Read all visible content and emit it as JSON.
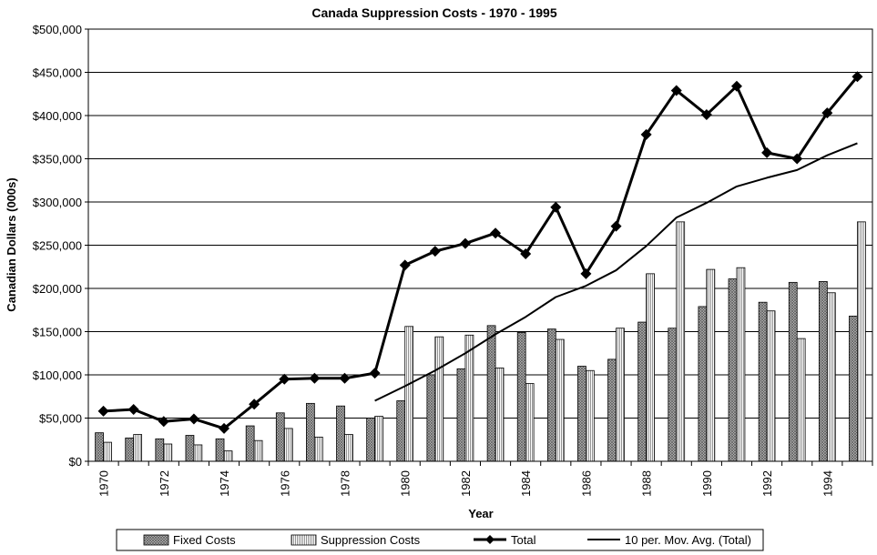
{
  "chart_data": {
    "type": "bar",
    "title": "Canada Suppression Costs - 1970 - 1995",
    "xlabel": "Year",
    "ylabel": "Canadian Dollars (000s)",
    "ylim": [
      0,
      500000
    ],
    "y_ticks": [
      "$0",
      "$50,000",
      "$100,000",
      "$150,000",
      "$200,000",
      "$250,000",
      "$300,000",
      "$350,000",
      "$400,000",
      "$450,000",
      "$500,000"
    ],
    "x_tick_labels": [
      "1970",
      "1972",
      "1974",
      "1976",
      "1978",
      "1980",
      "1982",
      "1984",
      "1986",
      "1988",
      "1990",
      "1992",
      "1994"
    ],
    "categories": [
      "1970",
      "1971",
      "1972",
      "1973",
      "1974",
      "1975",
      "1976",
      "1977",
      "1978",
      "1979",
      "1980",
      "1981",
      "1982",
      "1983",
      "1984",
      "1985",
      "1986",
      "1987",
      "1988",
      "1989",
      "1990",
      "1991",
      "1992",
      "1993",
      "1994",
      "1995"
    ],
    "grid": true,
    "legend_position": "bottom",
    "series": [
      {
        "name": "Fixed Costs",
        "kind": "bar",
        "pattern": "crosshatch",
        "values": [
          33000,
          27000,
          26000,
          30000,
          26000,
          41000,
          56000,
          67000,
          64000,
          50000,
          70000,
          100000,
          107000,
          157000,
          149000,
          153000,
          110000,
          118000,
          161000,
          154000,
          179000,
          211000,
          184000,
          207000,
          208000,
          168000
        ]
      },
      {
        "name": "Suppression Costs",
        "kind": "bar",
        "pattern": "vertical-stripes",
        "values": [
          22000,
          31000,
          20000,
          19000,
          12000,
          24000,
          38000,
          28000,
          31000,
          52000,
          156000,
          144000,
          146000,
          108000,
          90000,
          141000,
          105000,
          154000,
          217000,
          277000,
          222000,
          224000,
          174000,
          142000,
          195000,
          277000
        ]
      },
      {
        "name": "Total",
        "kind": "line-marker",
        "values": [
          58000,
          60000,
          46000,
          49000,
          38000,
          66000,
          95000,
          96000,
          96000,
          102000,
          227000,
          243000,
          252000,
          264000,
          240000,
          294000,
          217000,
          272000,
          378000,
          429000,
          401000,
          434000,
          357000,
          350000,
          403000,
          445000
        ]
      },
      {
        "name": "10 per. Mov. Avg. (Total)",
        "kind": "line",
        "values": [
          null,
          null,
          null,
          null,
          null,
          null,
          null,
          null,
          null,
          70000,
          87000,
          105000,
          125000,
          147000,
          167000,
          190000,
          203000,
          221000,
          249000,
          282000,
          299000,
          318000,
          328000,
          337000,
          354000,
          368000
        ]
      }
    ]
  }
}
